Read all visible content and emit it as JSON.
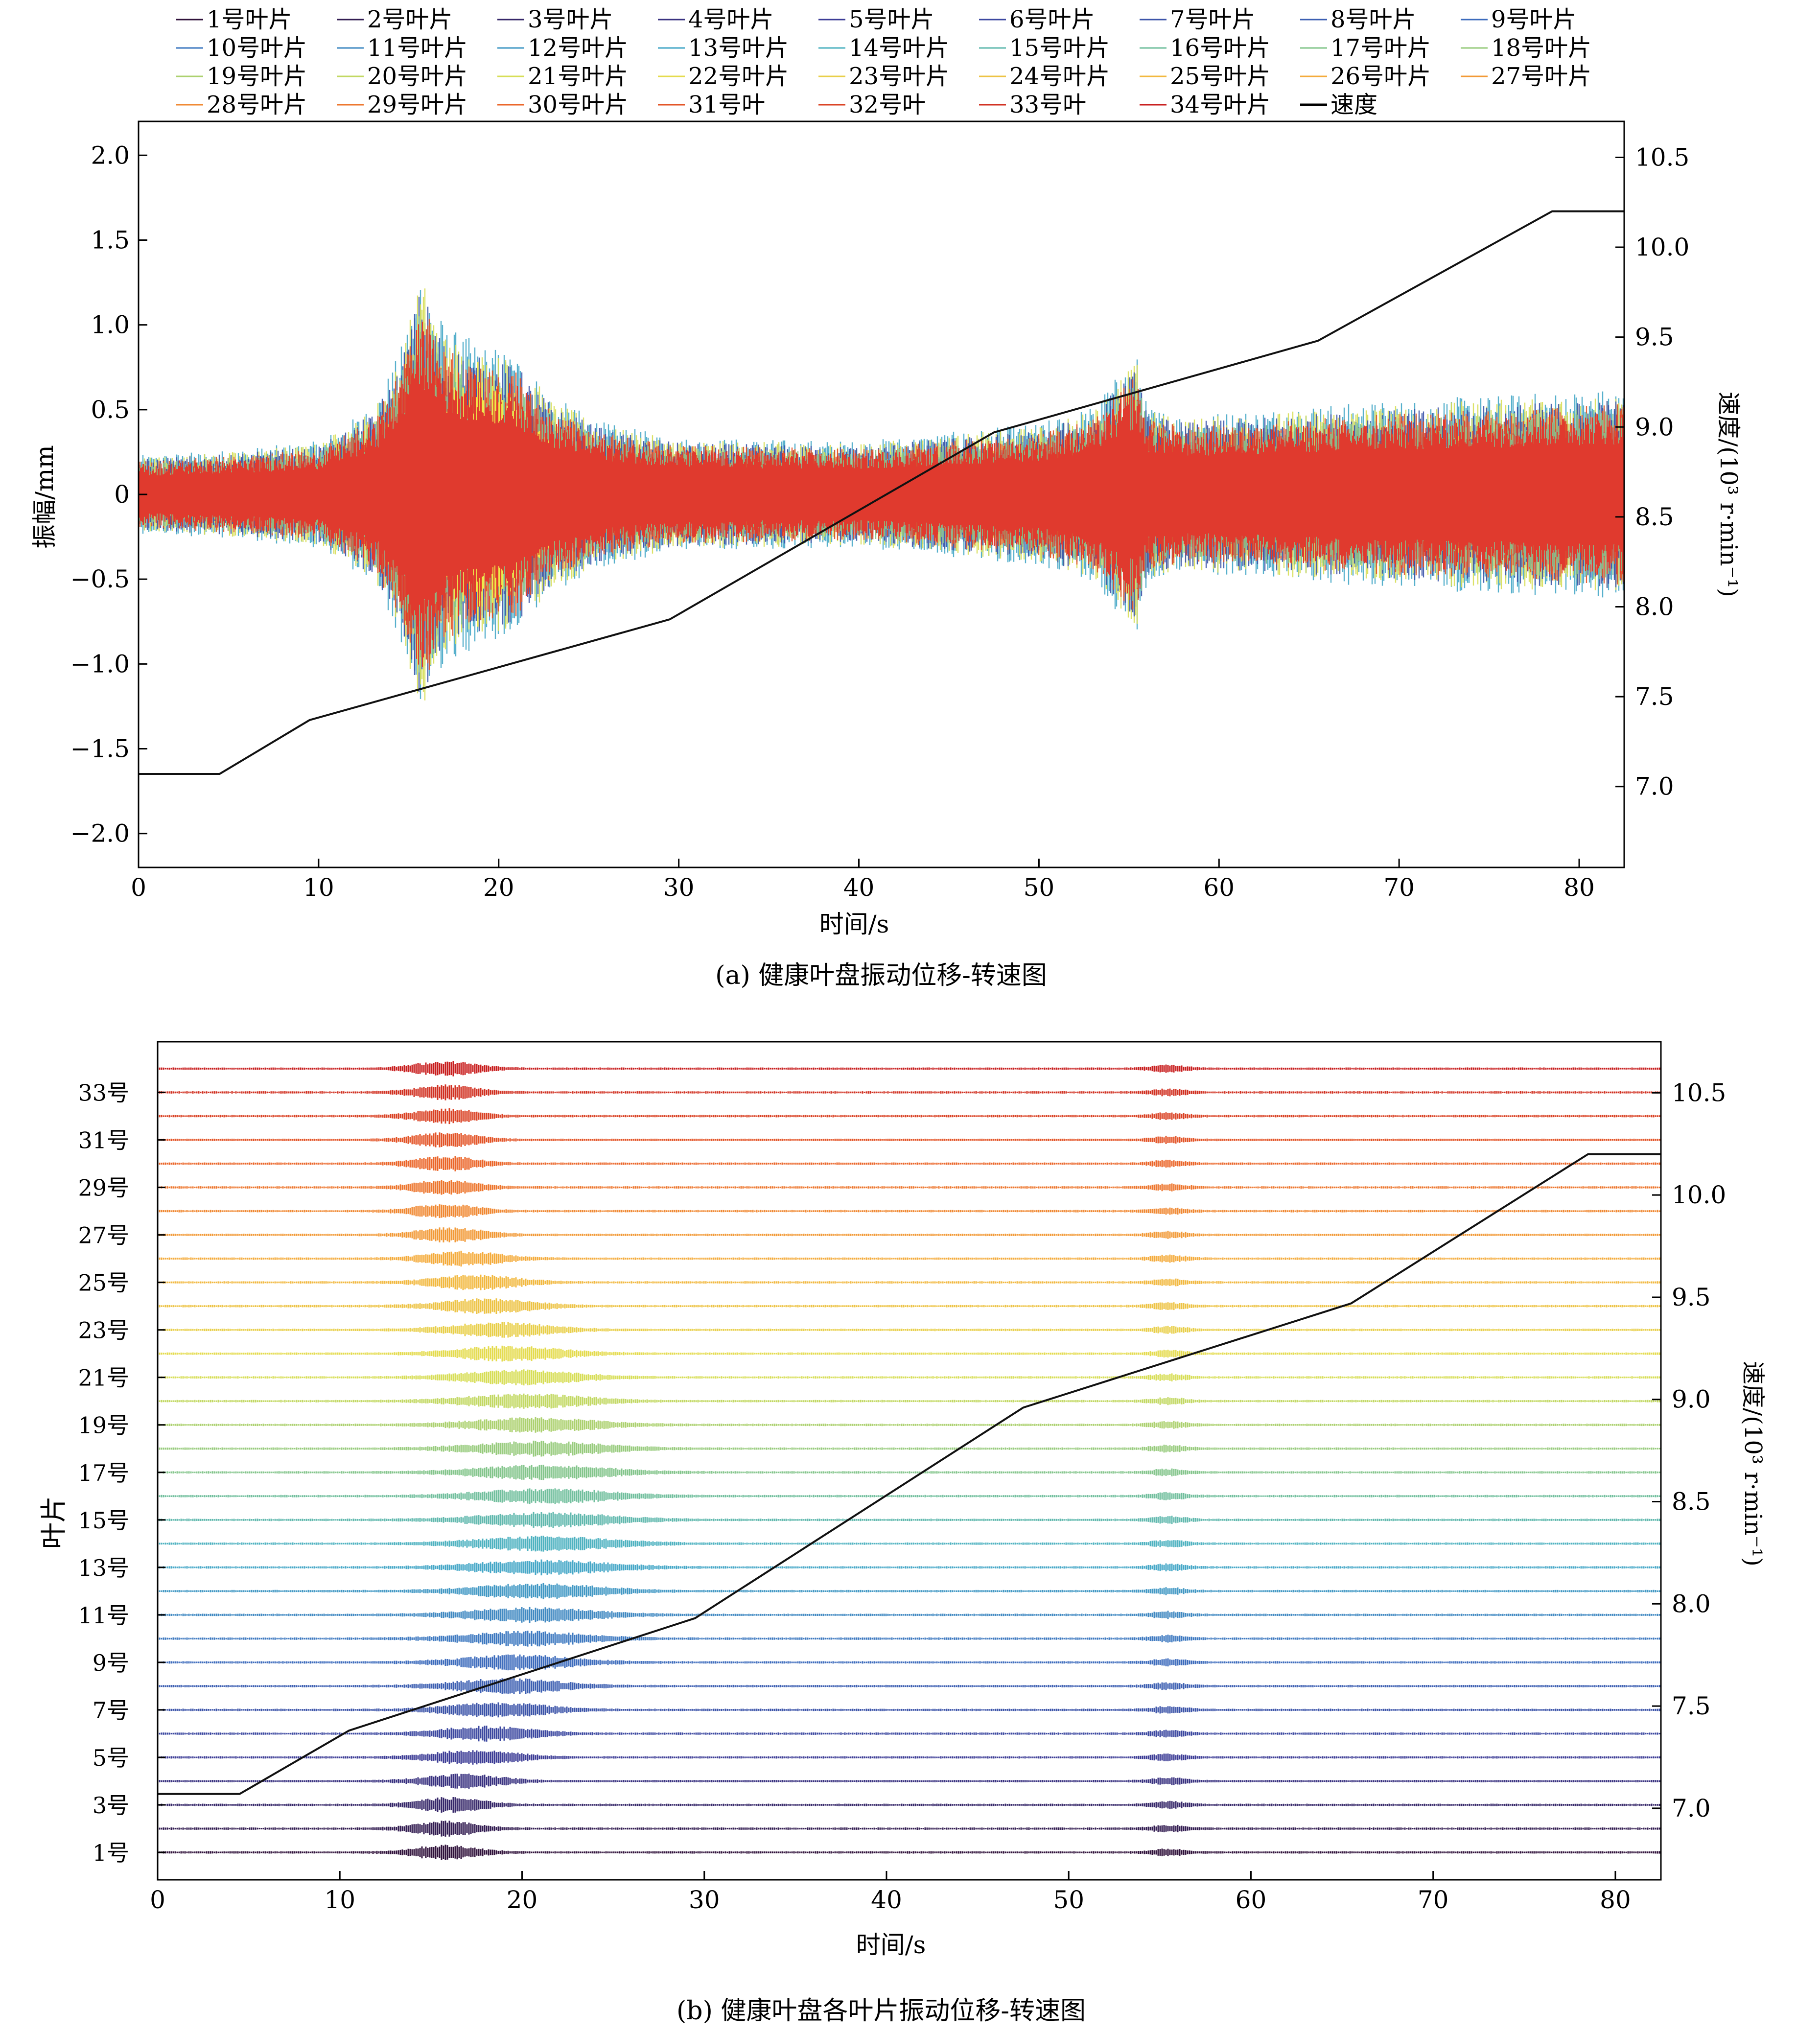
{
  "figure": {
    "caption_a": "(a) 健康叶盘振动位移-转速图",
    "caption_b": "(b) 健康叶盘各叶片振动位移-转速图"
  },
  "legend": {
    "entries": [
      "1号叶片",
      "2号叶片",
      "3号叶片",
      "4号叶片",
      "5号叶片",
      "6号叶片",
      "7号叶片",
      "8号叶片",
      "9号叶片",
      "10号叶片",
      "11号叶片",
      "12号叶片",
      "13号叶片",
      "14号叶片",
      "15号叶片",
      "16号叶片",
      "17号叶片",
      "18号叶片",
      "19号叶片",
      "20号叶片",
      "21号叶片",
      "22号叶片",
      "23号叶片",
      "24号叶片",
      "25号叶片",
      "26号叶片",
      "27号叶片",
      "28号叶片",
      "29号叶片",
      "30号叶片",
      "31号叶",
      "32号叶",
      "33号叶",
      "34号叶片",
      "速度"
    ]
  },
  "chart_data": [
    {
      "type": "line",
      "title": "(a) 健康叶盘振动位移-转速图",
      "xlabel": "时间/s",
      "ylabel": "振幅/mm",
      "y2label": "速度/(10³ r·min⁻¹)",
      "xlim": [
        0,
        82.5
      ],
      "ylim": [
        -2.2,
        2.2
      ],
      "y2lim": [
        6.55,
        10.7
      ],
      "xticks": [
        0,
        10,
        20,
        30,
        40,
        50,
        60,
        70,
        80
      ],
      "yticks": [
        -2.0,
        -1.5,
        -1.0,
        -0.5,
        0,
        0.5,
        1.0,
        1.5,
        2.0
      ],
      "ytick_labels": [
        "−2.0",
        "−1.5",
        "−1.0",
        "−0.5",
        "0",
        "0.5",
        "1.0",
        "1.5",
        "2.0"
      ],
      "y2ticks": [
        7.0,
        7.5,
        8.0,
        8.5,
        9.0,
        9.5,
        10.0,
        10.5
      ],
      "y2tick_labels": [
        "7.0",
        "7.5",
        "8.0",
        "8.5",
        "9.0",
        "9.5",
        "10.0",
        "10.5"
      ],
      "vibration_envelope": {
        "series": "1号叶片–34号叶片 (overlaid)",
        "t": [
          0,
          5,
          10,
          13,
          14.5,
          15.7,
          17,
          19,
          21,
          23,
          26,
          30,
          40,
          50,
          53,
          55,
          55.5,
          56,
          58,
          65,
          82.5
        ],
        "amp": [
          0.22,
          0.25,
          0.3,
          0.5,
          0.8,
          1.3,
          0.95,
          0.85,
          0.8,
          0.55,
          0.4,
          0.32,
          0.3,
          0.4,
          0.5,
          0.75,
          0.78,
          0.5,
          0.45,
          0.5,
          0.6
        ]
      },
      "speed": {
        "name": "速度",
        "t": [
          0,
          4.5,
          9.5,
          29.5,
          47.5,
          65.5,
          78.5,
          82.5
        ],
        "v": [
          7.07,
          7.07,
          7.37,
          7.93,
          8.97,
          9.48,
          10.2,
          10.2
        ]
      }
    },
    {
      "type": "line",
      "title": "(b) 健康叶盘各叶片振动位移-转速图",
      "xlabel": "时间/s",
      "ylabel": "叶片",
      "y2label": "速度/(10³ r·min⁻¹)",
      "xlim": [
        0,
        82.5
      ],
      "y2lim": [
        6.65,
        10.75
      ],
      "xticks": [
        0,
        10,
        20,
        30,
        40,
        50,
        60,
        70,
        80
      ],
      "blade_labels": [
        "1号",
        "3号",
        "5号",
        "7号",
        "9号",
        "11号",
        "13号",
        "15号",
        "17号",
        "19号",
        "21号",
        "23号",
        "25号",
        "27号",
        "29号",
        "31号",
        "33号"
      ],
      "blade_count": 34,
      "y2ticks": [
        7.0,
        7.5,
        8.0,
        8.5,
        9.0,
        9.5,
        10.0,
        10.5
      ],
      "y2tick_labels": [
        "7.0",
        "7.5",
        "8.0",
        "8.5",
        "9.0",
        "9.5",
        "10.0",
        "10.5"
      ],
      "speed": {
        "name": "速度",
        "t": [
          0,
          4.5,
          10.5,
          29.5,
          47.5,
          65.5,
          78.5,
          82.5
        ],
        "v": [
          7.07,
          7.07,
          7.38,
          7.93,
          8.96,
          9.47,
          10.2,
          10.2
        ]
      }
    }
  ]
}
